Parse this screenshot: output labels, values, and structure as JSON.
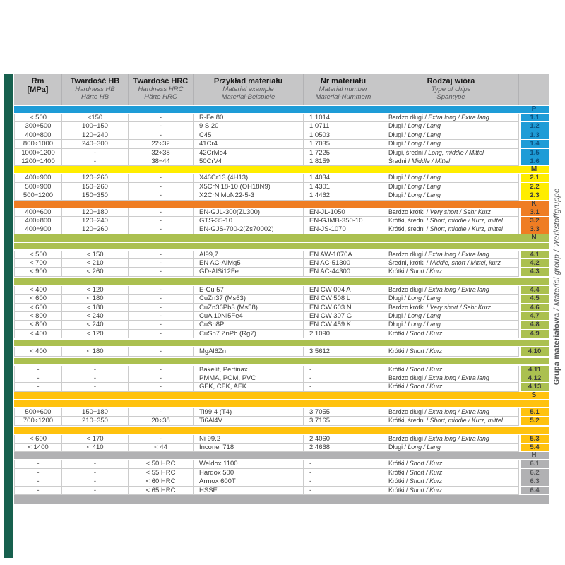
{
  "header": {
    "columns": [
      {
        "main_lines": [
          "Rm",
          "[MPa]"
        ],
        "sub_lines": []
      },
      {
        "main_lines": [
          "Twardość HB"
        ],
        "sub_lines": [
          "Hardness HB",
          "Härte HB"
        ]
      },
      {
        "main_lines": [
          "Twardość HRC"
        ],
        "sub_lines": [
          "Hardness HRC",
          "Härte HRC"
        ]
      },
      {
        "main_lines": [
          "Przykład materiału"
        ],
        "sub_lines": [
          "Material example",
          "Material-Beispiele"
        ]
      },
      {
        "main_lines": [
          "Nr materiału"
        ],
        "sub_lines": [
          "Material number",
          "Material-Nummern"
        ]
      },
      {
        "main_lines": [
          "Rodzaj wióra"
        ],
        "sub_lines": [
          "Type of chips",
          "Spantype"
        ]
      },
      {
        "main_lines": [],
        "sub_lines": []
      }
    ]
  },
  "sidebar": {
    "bold": "Grupa materiałowa",
    "italic": " / Material group / Werkstoffgruppe"
  },
  "colors": {
    "P": {
      "band": "#1e9cd7",
      "text": "#0b5180"
    },
    "M": {
      "band": "#ffed00",
      "text": "#3a3a3a"
    },
    "K": {
      "band": "#ef7d23",
      "text": "#3a3a3a"
    },
    "N": {
      "band": "#abc050",
      "text": "#3a3a3a"
    },
    "S": {
      "band": "#ffc20e",
      "text": "#3a3a3a"
    },
    "H": {
      "band": "#b1b1b3",
      "text": "#56575a"
    },
    "header_bg": "#c6c6c7",
    "row_text": "#3a3a3a",
    "grid": "#cccccc",
    "accent_bar": "#17604e",
    "bottom_band": "#b0b0b2",
    "sidebar_text": "#58595b"
  },
  "sections": [
    {
      "letter": "P",
      "divider_after_band": false,
      "blocks": [
        [
          {
            "rm": "< 500",
            "hb": "<150",
            "hrc": "-",
            "mat": "R-Fe 80",
            "nr": "1.1014",
            "pl": "Bardzo długi",
            "intl": "Extra long / Extra lang",
            "no": "1.1"
          },
          {
            "rm": "300÷500",
            "hb": "100÷150",
            "hrc": "-",
            "mat": "9 S 20",
            "nr": "1.0711",
            "pl": "Długi",
            "intl": "Long / Lang",
            "no": "1.2"
          },
          {
            "rm": "400÷800",
            "hb": "120÷240",
            "hrc": "-",
            "mat": "C45",
            "nr": "1.0503",
            "pl": "Długi",
            "intl": "Long / Lang",
            "no": "1.3"
          },
          {
            "rm": "800÷1000",
            "hb": "240÷300",
            "hrc": "22÷32",
            "mat": "41Cr4",
            "nr": "1.7035",
            "pl": "Długi",
            "intl": "Long / Lang",
            "no": "1.4"
          },
          {
            "rm": "1000÷1200",
            "hb": "-",
            "hrc": "32÷38",
            "mat": "42CrMo4",
            "nr": "1.7225",
            "pl": "Długi, średni",
            "intl": "Long, middle / Mittel",
            "no": "1.5"
          },
          {
            "rm": "1200÷1400",
            "hb": "-",
            "hrc": "38÷44",
            "mat": "50CrV4",
            "nr": "1.8159",
            "pl": "Średni",
            "intl": "Middle / Mittel",
            "no": "1.6"
          }
        ]
      ]
    },
    {
      "letter": "M",
      "divider_after_band": false,
      "blocks": [
        [
          {
            "rm": "400÷900",
            "hb": "120÷260",
            "hrc": "-",
            "mat": "X46Cr13 (4H13)",
            "nr": "1.4034",
            "pl": "Długi",
            "intl": "Long / Lang",
            "no": "2.1"
          },
          {
            "rm": "500÷900",
            "hb": "150÷260",
            "hrc": "-",
            "mat": "X5CrNi18-10 (OH18N9)",
            "nr": "1.4301",
            "pl": "Długi",
            "intl": "Long / Lang",
            "no": "2.2"
          },
          {
            "rm": "500÷1200",
            "hb": "150÷350",
            "hrc": "-",
            "mat": "X2CrNiMoN22-5-3",
            "nr": "1.4462",
            "pl": "Długi",
            "intl": "Long / Lang",
            "no": "2.3"
          }
        ]
      ]
    },
    {
      "letter": "K",
      "divider_after_band": false,
      "blocks": [
        [
          {
            "rm": "400÷600",
            "hb": "120÷180",
            "hrc": "-",
            "mat": "EN-GJL-300(ZL300)",
            "nr": "EN-JL-1050",
            "pl": "Bardzo krótki",
            "intl": "Very short / Sehr Kurz",
            "no": "3.1"
          },
          {
            "rm": "400÷800",
            "hb": "120÷240",
            "hrc": "-",
            "mat": "GTS-35-10",
            "nr": "EN-GJMB-350-10",
            "pl": "Krótki, średni",
            "intl": "Short, middle / Kurz, mittel",
            "no": "3.2"
          },
          {
            "rm": "400÷900",
            "hb": "120÷260",
            "hrc": "-",
            "mat": "EN-GJS-700-2(Zs70002)",
            "nr": "EN-JS-1070",
            "pl": "Krótki, średni",
            "intl": "Short, middle / Kurz, mittel",
            "no": "3.3"
          }
        ]
      ]
    },
    {
      "letter": "N",
      "divider_after_band": true,
      "blocks": [
        [
          {
            "rm": "< 500",
            "hb": "< 150",
            "hrc": "-",
            "mat": "Al99,7",
            "nr": "EN AW-1070A",
            "pl": "Bardzo długi",
            "intl": "Extra long / Extra lang",
            "no": "4.1"
          },
          {
            "rm": "< 700",
            "hb": "< 210",
            "hrc": "-",
            "mat": "EN AC-AlMg5",
            "nr": "EN AC-51300",
            "pl": "Średni, krótki",
            "intl": "Middle, short / Mittel, kurz",
            "no": "4.2"
          },
          {
            "rm": "< 900",
            "hb": "< 260",
            "hrc": "-",
            "mat": "GD-AlSi12Fe",
            "nr": "EN AC-44300",
            "pl": "Krótki",
            "intl": "Short / Kurz",
            "no": "4.3"
          }
        ],
        [
          {
            "rm": "< 400",
            "hb": "< 120",
            "hrc": "-",
            "mat": "E-Cu 57",
            "nr": "EN CW 004 A",
            "pl": "Bardzo długi",
            "intl": "Extra long / Extra lang",
            "no": "4.4"
          },
          {
            "rm": "< 600",
            "hb": "< 180",
            "hrc": "-",
            "mat": "CuZn37 (Ms63)",
            "nr": "EN CW 508 L",
            "pl": "Długi",
            "intl": "Long / Lang",
            "no": "4.5"
          },
          {
            "rm": "< 600",
            "hb": "< 180",
            "hrc": "-",
            "mat": "CuZn36Pb3 (Ms58)",
            "nr": "EN CW 603 N",
            "pl": "Bardzo krótki",
            "intl": "Very short / Sehr Kurz",
            "no": "4.6"
          },
          {
            "rm": "< 800",
            "hb": "< 240",
            "hrc": "-",
            "mat": "CuAl10Ni5Fe4",
            "nr": "EN CW 307 G",
            "pl": "Długi",
            "intl": "Long / Lang",
            "no": "4.7"
          },
          {
            "rm": "< 800",
            "hb": "< 240",
            "hrc": "-",
            "mat": "CuSn8P",
            "nr": "EN CW 459 K",
            "pl": "Długi",
            "intl": "Long / Lang",
            "no": "4.8"
          },
          {
            "rm": "< 400",
            "hb": "< 120",
            "hrc": "-",
            "mat": "CuSn7 ZnPb (Rg7)",
            "nr": "2.1090",
            "pl": "Krótki",
            "intl": "Short / Kurz",
            "no": "4.9"
          }
        ],
        [
          {
            "rm": "< 400",
            "hb": "< 180",
            "hrc": "-",
            "mat": "MgAl6Zn",
            "nr": "3.5612",
            "pl": "Krótki",
            "intl": "Short / Kurz",
            "no": "4.10"
          }
        ],
        [
          {
            "rm": "-",
            "hb": "-",
            "hrc": "-",
            "mat": "Bakelit, Pertinax",
            "nr": "-",
            "pl": "Krótki",
            "intl": "Short / Kurz",
            "no": "4.11"
          },
          {
            "rm": "-",
            "hb": "-",
            "hrc": "-",
            "mat": "PMMA, POM, PVC",
            "nr": "-",
            "pl": "Bardzo długi",
            "intl": "Extra long / Extra lang",
            "no": "4.12"
          },
          {
            "rm": "-",
            "hb": "-",
            "hrc": "-",
            "mat": "GFK, CFK, AFK",
            "nr": "-",
            "pl": "Krótki",
            "intl": "Short / Kurz",
            "no": "4.13"
          }
        ]
      ]
    },
    {
      "letter": "S",
      "divider_after_band": true,
      "blocks": [
        [
          {
            "rm": "500÷600",
            "hb": "150÷180",
            "hrc": "-",
            "mat": "Ti99,4 (T4)",
            "nr": "3.7055",
            "pl": "Bardzo długi",
            "intl": "Extra long / Extra lang",
            "no": "5.1"
          },
          {
            "rm": "700÷1200",
            "hb": "210÷350",
            "hrc": "20÷38",
            "mat": "Ti6Al4V",
            "nr": "3.7165",
            "pl": "Krótki, średni",
            "intl": "Short, middle / Kurz, mittel",
            "no": "5.2"
          }
        ],
        [
          {
            "rm": "< 600",
            "hb": "< 170",
            "hrc": "-",
            "mat": "Ni 99.2",
            "nr": "2.4060",
            "pl": "Bardzo długi",
            "intl": "Extra long / Extra lang",
            "no": "5.3"
          },
          {
            "rm": "< 1400",
            "hb": "< 410",
            "hrc": "< 44",
            "mat": "Inconel 718",
            "nr": "2.4668",
            "pl": "Długi",
            "intl": "Long / Lang",
            "no": "5.4"
          }
        ]
      ]
    },
    {
      "letter": "H",
      "divider_after_band": false,
      "blocks": [
        [
          {
            "rm": "-",
            "hb": "-",
            "hrc": "< 50 HRC",
            "mat": "Weldox 1100",
            "nr": "-",
            "pl": "Krótki",
            "intl": "Short / Kurz",
            "no": "6.1"
          },
          {
            "rm": "-",
            "hb": "-",
            "hrc": "< 55 HRC",
            "mat": "Hardox 500",
            "nr": "-",
            "pl": "Krótki",
            "intl": "Short / Kurz",
            "no": "6.2"
          },
          {
            "rm": "-",
            "hb": "-",
            "hrc": "< 60 HRC",
            "mat": "Armox 600T",
            "nr": "-",
            "pl": "Krótki",
            "intl": "Short / Kurz",
            "no": "6.3"
          },
          {
            "rm": "-",
            "hb": "-",
            "hrc": "< 65 HRC",
            "mat": "HSSE",
            "nr": "-",
            "pl": "Krótki",
            "intl": "Short / Kurz",
            "no": "6.4"
          }
        ]
      ]
    }
  ]
}
